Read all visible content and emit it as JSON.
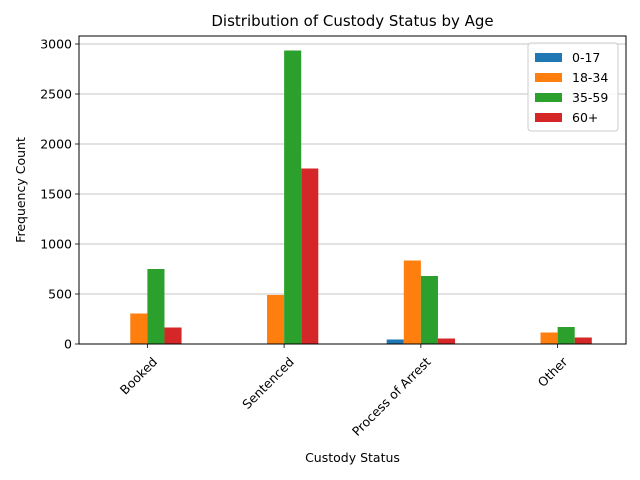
{
  "chart_data": {
    "type": "bar",
    "title": "Distribution of Custody Status by Age",
    "xlabel": "Custody Status",
    "ylabel": "Frequency Count",
    "categories": [
      "Booked",
      "Sentenced",
      "Process of Arrest",
      "Other"
    ],
    "series": [
      {
        "name": "0-17",
        "color": "#1f77b4",
        "values": [
          5,
          5,
          45,
          5
        ]
      },
      {
        "name": "18-34",
        "color": "#ff7f0e",
        "values": [
          305,
          490,
          835,
          115
        ]
      },
      {
        "name": "35-59",
        "color": "#2ca02c",
        "values": [
          750,
          2935,
          680,
          170
        ]
      },
      {
        "name": "60+",
        "color": "#d62728",
        "values": [
          165,
          1755,
          55,
          65
        ]
      }
    ],
    "ylim": [
      0,
      3080
    ],
    "yticks": [
      0,
      500,
      1000,
      1500,
      2000,
      2500,
      3000
    ],
    "grid": "horizontal",
    "legend_position": "top-right"
  }
}
